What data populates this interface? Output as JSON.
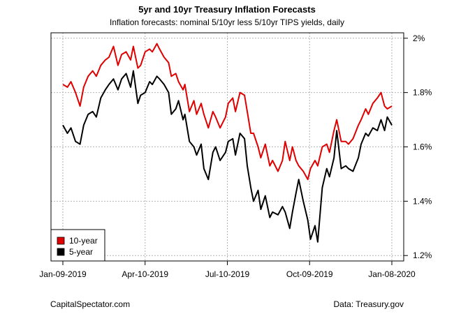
{
  "chart_data": {
    "type": "line",
    "title": "5yr and 10yr Treasury Inflation Forecasts",
    "subtitle": "Inflation forecasts: nominal 5/10yr less 5/10yr TIPS yields, daily",
    "xlabel": "",
    "ylabel": "",
    "x_ticks": [
      "Jan-09-2019",
      "Apr-10-2019",
      "Jul-10-2019",
      "Oct-09-2019",
      "Jan-08-2020"
    ],
    "y_ticks": [
      "1.2%",
      "1.4%",
      "1.6%",
      "1.8%",
      "2%"
    ],
    "y_tick_values": [
      1.2,
      1.4,
      1.6,
      1.8,
      2.0
    ],
    "ylim": [
      1.18,
      2.02
    ],
    "x_axis": "dates",
    "grid": true,
    "legend_position": "bottom-left",
    "series": [
      {
        "name": "10-year",
        "color": "#e00000",
        "points": [
          [
            "2019-01-09",
            1.83
          ],
          [
            "2019-01-14",
            1.82
          ],
          [
            "2019-01-18",
            1.84
          ],
          [
            "2019-01-23",
            1.8
          ],
          [
            "2019-01-28",
            1.75
          ],
          [
            "2019-02-01",
            1.82
          ],
          [
            "2019-02-06",
            1.86
          ],
          [
            "2019-02-11",
            1.88
          ],
          [
            "2019-02-15",
            1.86
          ],
          [
            "2019-02-20",
            1.9
          ],
          [
            "2019-02-25",
            1.92
          ],
          [
            "2019-03-01",
            1.93
          ],
          [
            "2019-03-06",
            1.97
          ],
          [
            "2019-03-11",
            1.9
          ],
          [
            "2019-03-15",
            1.94
          ],
          [
            "2019-03-20",
            1.95
          ],
          [
            "2019-03-25",
            1.92
          ],
          [
            "2019-03-28",
            1.97
          ],
          [
            "2019-04-02",
            1.89
          ],
          [
            "2019-04-05",
            1.9
          ],
          [
            "2019-04-10",
            1.95
          ],
          [
            "2019-04-15",
            1.96
          ],
          [
            "2019-04-18",
            1.95
          ],
          [
            "2019-04-23",
            1.98
          ],
          [
            "2019-04-26",
            1.96
          ],
          [
            "2019-05-01",
            1.93
          ],
          [
            "2019-05-06",
            1.91
          ],
          [
            "2019-05-09",
            1.86
          ],
          [
            "2019-05-14",
            1.87
          ],
          [
            "2019-05-17",
            1.84
          ],
          [
            "2019-05-22",
            1.81
          ],
          [
            "2019-05-24",
            1.83
          ],
          [
            "2019-05-29",
            1.73
          ],
          [
            "2019-06-03",
            1.77
          ],
          [
            "2019-06-06",
            1.72
          ],
          [
            "2019-06-11",
            1.76
          ],
          [
            "2019-06-14",
            1.72
          ],
          [
            "2019-06-19",
            1.67
          ],
          [
            "2019-06-24",
            1.73
          ],
          [
            "2019-06-27",
            1.71
          ],
          [
            "2019-07-02",
            1.67
          ],
          [
            "2019-07-08",
            1.71
          ],
          [
            "2019-07-11",
            1.76
          ],
          [
            "2019-07-16",
            1.78
          ],
          [
            "2019-07-19",
            1.73
          ],
          [
            "2019-07-24",
            1.8
          ],
          [
            "2019-07-29",
            1.79
          ],
          [
            "2019-08-01",
            1.73
          ],
          [
            "2019-08-05",
            1.65
          ],
          [
            "2019-08-08",
            1.65
          ],
          [
            "2019-08-13",
            1.6
          ],
          [
            "2019-08-16",
            1.56
          ],
          [
            "2019-08-21",
            1.61
          ],
          [
            "2019-08-26",
            1.53
          ],
          [
            "2019-08-29",
            1.55
          ],
          [
            "2019-09-04",
            1.51
          ],
          [
            "2019-09-09",
            1.55
          ],
          [
            "2019-09-12",
            1.62
          ],
          [
            "2019-09-17",
            1.55
          ],
          [
            "2019-09-20",
            1.6
          ],
          [
            "2019-09-24",
            1.55
          ],
          [
            "2019-09-27",
            1.53
          ],
          [
            "2019-10-02",
            1.51
          ],
          [
            "2019-10-07",
            1.48
          ],
          [
            "2019-10-10",
            1.52
          ],
          [
            "2019-10-15",
            1.55
          ],
          [
            "2019-10-18",
            1.53
          ],
          [
            "2019-10-23",
            1.6
          ],
          [
            "2019-10-28",
            1.61
          ],
          [
            "2019-10-31",
            1.58
          ],
          [
            "2019-11-05",
            1.66
          ],
          [
            "2019-11-08",
            1.7
          ],
          [
            "2019-11-13",
            1.62
          ],
          [
            "2019-11-18",
            1.62
          ],
          [
            "2019-11-21",
            1.61
          ],
          [
            "2019-11-26",
            1.63
          ],
          [
            "2019-12-02",
            1.68
          ],
          [
            "2019-12-05",
            1.7
          ],
          [
            "2019-12-10",
            1.74
          ],
          [
            "2019-12-13",
            1.72
          ],
          [
            "2019-12-18",
            1.76
          ],
          [
            "2019-12-23",
            1.78
          ],
          [
            "2019-12-27",
            1.8
          ],
          [
            "2019-12-31",
            1.75
          ],
          [
            "2020-01-03",
            1.74
          ],
          [
            "2020-01-08",
            1.75
          ]
        ]
      },
      {
        "name": "5-year",
        "color": "#000000",
        "points": [
          [
            "2019-01-09",
            1.68
          ],
          [
            "2019-01-14",
            1.65
          ],
          [
            "2019-01-18",
            1.67
          ],
          [
            "2019-01-23",
            1.62
          ],
          [
            "2019-01-28",
            1.61
          ],
          [
            "2019-02-01",
            1.68
          ],
          [
            "2019-02-06",
            1.72
          ],
          [
            "2019-02-11",
            1.73
          ],
          [
            "2019-02-15",
            1.71
          ],
          [
            "2019-02-20",
            1.78
          ],
          [
            "2019-02-25",
            1.81
          ],
          [
            "2019-03-01",
            1.83
          ],
          [
            "2019-03-06",
            1.85
          ],
          [
            "2019-03-11",
            1.81
          ],
          [
            "2019-03-15",
            1.85
          ],
          [
            "2019-03-20",
            1.87
          ],
          [
            "2019-03-25",
            1.82
          ],
          [
            "2019-03-28",
            1.88
          ],
          [
            "2019-04-02",
            1.76
          ],
          [
            "2019-04-05",
            1.79
          ],
          [
            "2019-04-10",
            1.8
          ],
          [
            "2019-04-15",
            1.84
          ],
          [
            "2019-04-18",
            1.83
          ],
          [
            "2019-04-23",
            1.86
          ],
          [
            "2019-04-26",
            1.85
          ],
          [
            "2019-05-01",
            1.83
          ],
          [
            "2019-05-06",
            1.8
          ],
          [
            "2019-05-09",
            1.72
          ],
          [
            "2019-05-14",
            1.74
          ],
          [
            "2019-05-17",
            1.77
          ],
          [
            "2019-05-22",
            1.7
          ],
          [
            "2019-05-24",
            1.72
          ],
          [
            "2019-05-29",
            1.62
          ],
          [
            "2019-06-03",
            1.6
          ],
          [
            "2019-06-06",
            1.57
          ],
          [
            "2019-06-11",
            1.61
          ],
          [
            "2019-06-14",
            1.52
          ],
          [
            "2019-06-19",
            1.48
          ],
          [
            "2019-06-24",
            1.58
          ],
          [
            "2019-06-27",
            1.6
          ],
          [
            "2019-07-02",
            1.55
          ],
          [
            "2019-07-08",
            1.58
          ],
          [
            "2019-07-11",
            1.62
          ],
          [
            "2019-07-16",
            1.63
          ],
          [
            "2019-07-19",
            1.57
          ],
          [
            "2019-07-24",
            1.65
          ],
          [
            "2019-07-29",
            1.63
          ],
          [
            "2019-08-01",
            1.53
          ],
          [
            "2019-08-05",
            1.45
          ],
          [
            "2019-08-08",
            1.4
          ],
          [
            "2019-08-13",
            1.44
          ],
          [
            "2019-08-16",
            1.37
          ],
          [
            "2019-08-21",
            1.42
          ],
          [
            "2019-08-26",
            1.34
          ],
          [
            "2019-08-29",
            1.36
          ],
          [
            "2019-09-04",
            1.35
          ],
          [
            "2019-09-09",
            1.38
          ],
          [
            "2019-09-12",
            1.36
          ],
          [
            "2019-09-17",
            1.3
          ],
          [
            "2019-09-20",
            1.36
          ],
          [
            "2019-09-24",
            1.43
          ],
          [
            "2019-09-27",
            1.48
          ],
          [
            "2019-10-02",
            1.4
          ],
          [
            "2019-10-07",
            1.33
          ],
          [
            "2019-10-10",
            1.26
          ],
          [
            "2019-10-15",
            1.31
          ],
          [
            "2019-10-18",
            1.25
          ],
          [
            "2019-10-23",
            1.45
          ],
          [
            "2019-10-28",
            1.52
          ],
          [
            "2019-10-31",
            1.49
          ],
          [
            "2019-11-05",
            1.56
          ],
          [
            "2019-11-08",
            1.66
          ],
          [
            "2019-11-13",
            1.52
          ],
          [
            "2019-11-18",
            1.53
          ],
          [
            "2019-11-21",
            1.52
          ],
          [
            "2019-11-26",
            1.51
          ],
          [
            "2019-12-02",
            1.56
          ],
          [
            "2019-12-05",
            1.61
          ],
          [
            "2019-12-10",
            1.65
          ],
          [
            "2019-12-13",
            1.64
          ],
          [
            "2019-12-18",
            1.67
          ],
          [
            "2019-12-23",
            1.66
          ],
          [
            "2019-12-27",
            1.7
          ],
          [
            "2019-12-31",
            1.66
          ],
          [
            "2020-01-03",
            1.71
          ],
          [
            "2020-01-08",
            1.68
          ]
        ]
      }
    ]
  },
  "footer": {
    "left": "CapitalSpectator.com",
    "right": "Data: Treasury.gov"
  }
}
